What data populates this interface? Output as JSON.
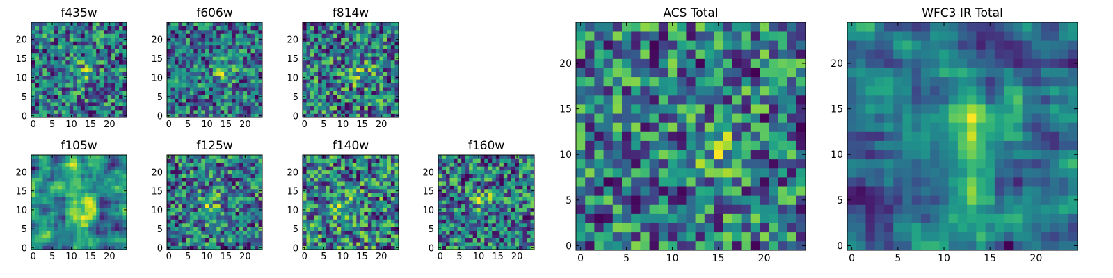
{
  "chart_data": [
    {
      "type": "heatmap",
      "title": "f435w",
      "xlim": [
        -0.5,
        24.5
      ],
      "ylim": [
        -0.5,
        24.5
      ],
      "xticks": [
        0,
        5,
        10,
        15,
        20
      ],
      "yticks": [
        0,
        5,
        10,
        15,
        20
      ],
      "colormap": "viridis",
      "grid": "25x25 noise cutout; slight bright blob near x≈14, y≈11",
      "bright_center": [
        14,
        11
      ],
      "origin": "lower"
    },
    {
      "type": "heatmap",
      "title": "f606w",
      "xlim": [
        -0.5,
        24.5
      ],
      "ylim": [
        -0.5,
        24.5
      ],
      "xticks": [
        0,
        5,
        10,
        15,
        20
      ],
      "yticks": [
        0,
        5,
        10,
        15,
        20
      ],
      "colormap": "viridis",
      "bright_center": [
        14,
        11
      ],
      "origin": "lower"
    },
    {
      "type": "heatmap",
      "title": "f814w",
      "xlim": [
        -0.5,
        24.5
      ],
      "ylim": [
        -0.5,
        24.5
      ],
      "xticks": [
        0,
        5,
        10,
        15,
        20
      ],
      "yticks": [
        0,
        5,
        10,
        15,
        20
      ],
      "colormap": "viridis",
      "bright_center": [
        14,
        11
      ],
      "origin": "lower"
    },
    {
      "type": "heatmap",
      "title": "f105w",
      "xlim": [
        -0.5,
        24.5
      ],
      "ylim": [
        -0.5,
        24.5
      ],
      "xticks": [
        0,
        5,
        10,
        15,
        20
      ],
      "yticks": [
        0,
        5,
        10,
        15,
        20
      ],
      "colormap": "viridis",
      "bright_center": [
        12,
        11
      ],
      "origin": "lower"
    },
    {
      "type": "heatmap",
      "title": "f125w",
      "xlim": [
        -0.5,
        24.5
      ],
      "ylim": [
        -0.5,
        24.5
      ],
      "xticks": [
        0,
        5,
        10,
        15,
        20
      ],
      "yticks": [
        0,
        5,
        10,
        15,
        20
      ],
      "colormap": "viridis",
      "bright_center": [
        11,
        11
      ],
      "origin": "lower"
    },
    {
      "type": "heatmap",
      "title": "f140w",
      "xlim": [
        -0.5,
        24.5
      ],
      "ylim": [
        -0.5,
        24.5
      ],
      "xticks": [
        0,
        5,
        10,
        15,
        20
      ],
      "yticks": [
        0,
        5,
        10,
        15,
        20
      ],
      "colormap": "viridis",
      "bright_center": [
        11,
        11
      ],
      "origin": "lower"
    },
    {
      "type": "heatmap",
      "title": "f160w",
      "xlim": [
        -0.5,
        24.5
      ],
      "ylim": [
        -0.5,
        24.5
      ],
      "xticks": [
        0,
        5,
        10,
        15,
        20
      ],
      "yticks": [
        0,
        5,
        10,
        15,
        20
      ],
      "colormap": "viridis",
      "bright_center": [
        11,
        12
      ],
      "origin": "lower"
    },
    {
      "type": "heatmap",
      "title": "ACS Total",
      "xlim": [
        -0.5,
        24.5
      ],
      "ylim": [
        -0.5,
        24.5
      ],
      "xticks": [
        0,
        5,
        10,
        15,
        20
      ],
      "yticks": [
        0,
        5,
        10,
        15,
        20
      ],
      "colormap": "viridis",
      "bright_center": [
        15,
        10
      ],
      "origin": "lower"
    },
    {
      "type": "heatmap",
      "title": "WFC3 IR Total",
      "xlim": [
        -0.5,
        24.5
      ],
      "ylim": [
        -0.5,
        24.5
      ],
      "xticks": [
        0,
        5,
        10,
        15,
        20
      ],
      "yticks": [
        0,
        5,
        10,
        15,
        20
      ],
      "colormap": "viridis",
      "bright_center": [
        12,
        12
      ],
      "origin": "lower"
    }
  ]
}
